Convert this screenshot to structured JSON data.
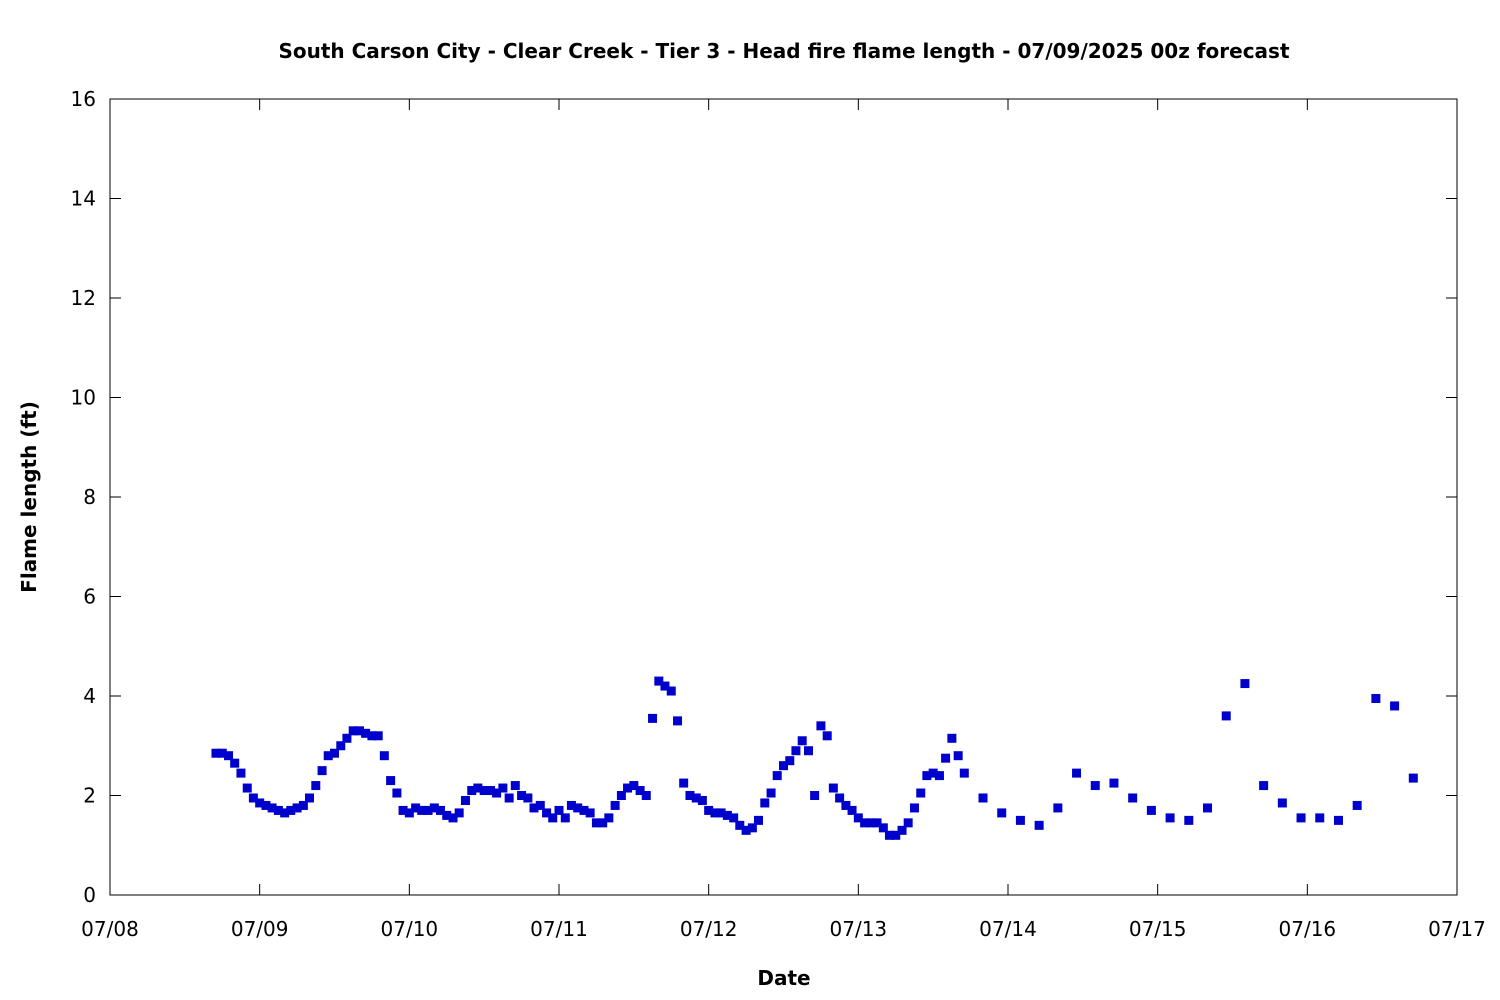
{
  "chart_data": {
    "type": "scatter",
    "title": "South Carson City - Clear Creek - Tier 3 - Head fire flame length - 07/09/2025 00z forecast",
    "xlabel": "Date",
    "ylabel": "Flame length (ft)",
    "x_tick_labels": [
      "07/08",
      "07/09",
      "07/10",
      "07/11",
      "07/12",
      "07/13",
      "07/14",
      "07/15",
      "07/16",
      "07/17"
    ],
    "y_tick_labels": [
      "0",
      "2",
      "4",
      "6",
      "8",
      "10",
      "12",
      "14",
      "16"
    ],
    "xlim": [
      0,
      9
    ],
    "ylim": [
      0,
      16
    ],
    "grid": false,
    "marker_color": "#0000cc",
    "series": [
      {
        "marker": "square",
        "x": [
          0.708,
          0.75,
          0.792,
          0.833,
          0.875,
          0.917,
          0.958,
          1.0,
          1.042,
          1.083,
          1.125,
          1.167,
          1.208,
          1.25,
          1.292,
          1.333,
          1.375,
          1.417,
          1.458,
          1.5,
          1.542,
          1.583,
          1.625,
          1.667,
          1.708,
          1.75,
          1.792,
          1.833,
          1.875,
          1.917,
          1.958,
          2.0,
          2.042,
          2.083,
          2.125,
          2.167,
          2.208,
          2.25,
          2.292,
          2.333,
          2.375,
          2.417,
          2.458,
          2.5,
          2.542,
          2.583,
          2.625,
          2.667,
          2.708,
          2.75,
          2.792,
          2.833,
          2.875,
          2.917,
          2.958,
          3.0,
          3.042,
          3.083,
          3.125,
          3.167,
          3.208,
          3.25,
          3.292,
          3.333,
          3.375,
          3.417,
          3.458,
          3.5,
          3.542,
          3.583,
          3.625,
          3.667,
          3.708,
          3.75,
          3.792,
          3.833,
          3.875,
          3.917,
          3.958,
          4.0,
          4.042,
          4.083,
          4.125,
          4.167,
          4.208,
          4.25,
          4.292,
          4.333,
          4.375,
          4.417,
          4.458,
          4.5,
          4.542,
          4.583,
          4.625,
          4.667,
          4.708,
          4.75,
          4.792,
          4.833,
          4.875,
          4.917,
          4.958,
          5.0,
          5.042,
          5.083,
          5.125,
          5.167,
          5.208,
          5.25,
          5.292,
          5.333,
          5.375,
          5.417,
          5.458,
          5.5,
          5.542,
          5.583,
          5.625,
          5.667,
          5.708,
          5.833,
          5.958,
          6.083,
          6.208,
          6.333,
          6.458,
          6.583,
          6.708,
          6.833,
          6.958,
          7.083,
          7.208,
          7.333,
          7.458,
          7.583,
          7.708,
          7.833,
          7.958,
          8.083,
          8.208,
          8.333,
          8.458,
          8.583,
          8.708
        ],
        "y": [
          2.85,
          2.85,
          2.8,
          2.65,
          2.45,
          2.15,
          1.95,
          1.85,
          1.8,
          1.75,
          1.7,
          1.65,
          1.7,
          1.75,
          1.8,
          1.95,
          2.2,
          2.5,
          2.8,
          2.85,
          3.0,
          3.15,
          3.3,
          3.3,
          3.25,
          3.2,
          3.2,
          2.8,
          2.3,
          2.05,
          1.7,
          1.65,
          1.75,
          1.7,
          1.7,
          1.75,
          1.7,
          1.6,
          1.55,
          1.65,
          1.9,
          2.1,
          2.15,
          2.1,
          2.1,
          2.05,
          2.15,
          1.95,
          2.2,
          2.0,
          1.95,
          1.75,
          1.8,
          1.65,
          1.55,
          1.7,
          1.55,
          1.8,
          1.75,
          1.7,
          1.65,
          1.45,
          1.45,
          1.55,
          1.8,
          2.0,
          2.15,
          2.2,
          2.1,
          2.0,
          3.55,
          4.3,
          4.2,
          4.1,
          3.5,
          2.25,
          2.0,
          1.95,
          1.9,
          1.7,
          1.65,
          1.65,
          1.6,
          1.55,
          1.4,
          1.3,
          1.35,
          1.5,
          1.85,
          2.05,
          2.4,
          2.6,
          2.7,
          2.9,
          3.1,
          2.9,
          2.0,
          3.4,
          3.2,
          2.15,
          1.95,
          1.8,
          1.7,
          1.55,
          1.45,
          1.45,
          1.45,
          1.35,
          1.2,
          1.2,
          1.3,
          1.45,
          1.75,
          2.05,
          2.4,
          2.45,
          2.4,
          2.75,
          3.15,
          2.8,
          2.45,
          1.95,
          1.65,
          1.5,
          1.4,
          1.75,
          2.45,
          2.2,
          2.25,
          1.95,
          1.7,
          1.55,
          1.5,
          1.75,
          3.6,
          4.25,
          2.2,
          1.85,
          1.55,
          1.55,
          1.5,
          1.8,
          3.95,
          3.8,
          2.35
        ]
      }
    ]
  }
}
